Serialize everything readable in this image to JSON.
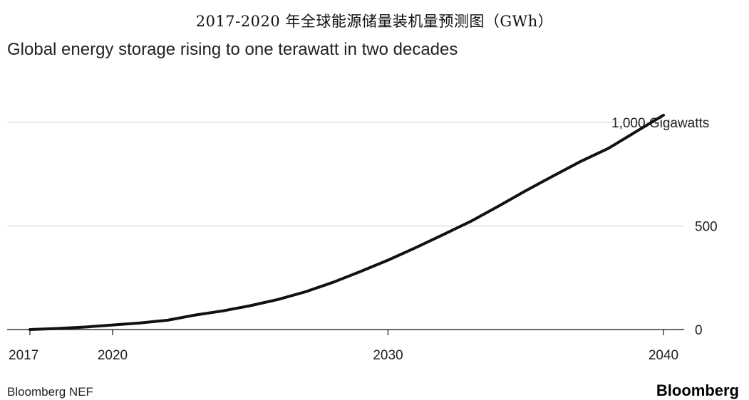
{
  "header": {
    "title_cn": "2017-2020 年全球能源储量装机量预测图（GWh）",
    "subtitle": "Global energy storage rising to one terawatt in two decades"
  },
  "footer": {
    "source": "Bloomberg NEF",
    "brand": "Bloomberg"
  },
  "chart_data": {
    "type": "line",
    "title": "Global energy storage rising to one terawatt in two decades",
    "xlabel": "",
    "ylabel": "",
    "xlim": [
      2017,
      2040
    ],
    "ylim": [
      0,
      1000
    ],
    "x_ticks": [
      {
        "value": 2017,
        "label": "2017"
      },
      {
        "value": 2020,
        "label": "2020"
      },
      {
        "value": 2030,
        "label": "2030"
      },
      {
        "value": 2040,
        "label": "2040"
      }
    ],
    "y_ticks": [
      {
        "value": 0,
        "label": "0"
      },
      {
        "value": 500,
        "label": "500"
      },
      {
        "value": 1000,
        "label": "1,000 Gigawatts"
      }
    ],
    "grid": "horizontal",
    "series": [
      {
        "color": "#111111",
        "points": [
          {
            "x": 2017,
            "y": 0
          },
          {
            "x": 2018,
            "y": 5
          },
          {
            "x": 2019,
            "y": 12
          },
          {
            "x": 2020,
            "y": 22
          },
          {
            "x": 2021,
            "y": 32
          },
          {
            "x": 2022,
            "y": 45
          },
          {
            "x": 2023,
            "y": 70
          },
          {
            "x": 2024,
            "y": 90
          },
          {
            "x": 2025,
            "y": 115
          },
          {
            "x": 2026,
            "y": 145
          },
          {
            "x": 2027,
            "y": 182
          },
          {
            "x": 2028,
            "y": 228
          },
          {
            "x": 2029,
            "y": 280
          },
          {
            "x": 2030,
            "y": 335
          },
          {
            "x": 2031,
            "y": 395
          },
          {
            "x": 2032,
            "y": 458
          },
          {
            "x": 2033,
            "y": 522
          },
          {
            "x": 2034,
            "y": 595
          },
          {
            "x": 2035,
            "y": 670
          },
          {
            "x": 2036,
            "y": 742
          },
          {
            "x": 2037,
            "y": 812
          },
          {
            "x": 2038,
            "y": 875
          },
          {
            "x": 2039,
            "y": 955
          },
          {
            "x": 2040,
            "y": 1035
          }
        ]
      }
    ]
  }
}
